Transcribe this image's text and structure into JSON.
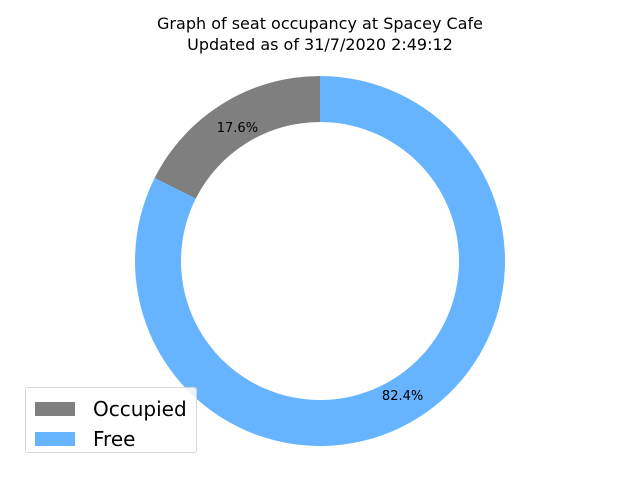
{
  "chart_data": {
    "type": "pie",
    "style": "donut",
    "title": "Graph of seat occupancy at Spacey Cafe",
    "subtitle": "Updated as of 31/7/2020 2:49:12",
    "slices": [
      {
        "name": "Occupied",
        "percent": 17.6,
        "label": "17.6%",
        "color": "#7f7f7f"
      },
      {
        "name": "Free",
        "percent": 82.4,
        "label": "82.4%",
        "color": "#66b3ff"
      }
    ],
    "legend_position": "lower-left"
  }
}
